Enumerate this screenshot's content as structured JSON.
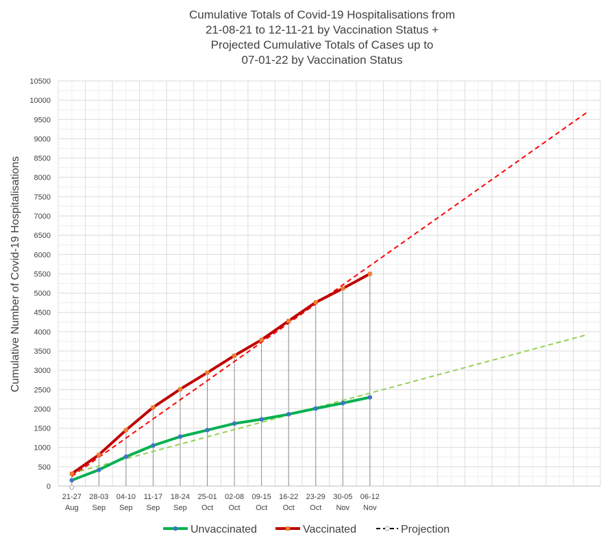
{
  "chart_data": {
    "type": "line",
    "title_lines": [
      "Cumulative Totals of Covid-19 Hospitalisations from",
      "21-08-21 to 12-11-21 by Vaccination Status +",
      "Projected Cumulative Totals of Cases up to",
      "07-01-22 by Vaccination Status"
    ],
    "ylabel": "Cumulative Number of Covid-19 Hospitalisations",
    "xlabel": "",
    "ylim": [
      0,
      10500
    ],
    "y_ticks": [
      0,
      500,
      1000,
      1500,
      2000,
      2500,
      3000,
      3500,
      4000,
      4500,
      5000,
      5500,
      6000,
      6500,
      7000,
      7500,
      8000,
      8500,
      9000,
      9500,
      10000,
      10500
    ],
    "grid": true,
    "legend_position": "bottom",
    "total_periods": 20,
    "categories": [
      {
        "range": "21-27",
        "month": "Aug"
      },
      {
        "range": "28-03",
        "month": "Sep"
      },
      {
        "range": "04-10",
        "month": "Sep"
      },
      {
        "range": "11-17",
        "month": "Sep"
      },
      {
        "range": "18-24",
        "month": "Sep"
      },
      {
        "range": "25-01",
        "month": "Oct"
      },
      {
        "range": "02-08",
        "month": "Oct"
      },
      {
        "range": "09-15",
        "month": "Oct"
      },
      {
        "range": "16-22",
        "month": "Oct"
      },
      {
        "range": "23-29",
        "month": "Oct"
      },
      {
        "range": "30-05",
        "month": "Nov"
      },
      {
        "range": "06-12",
        "month": "Nov"
      }
    ],
    "series": [
      {
        "name": "Unvaccinated",
        "color": "#00b050",
        "marker_color": "#4472c4",
        "values": [
          150,
          420,
          760,
          1050,
          1280,
          1450,
          1620,
          1730,
          1860,
          2010,
          2150,
          2300
        ]
      },
      {
        "name": "Vaccinated",
        "color": "#c00000",
        "marker_color": "#ed7d31",
        "values": [
          320,
          810,
          1450,
          2040,
          2510,
          2940,
          3380,
          3790,
          4280,
          4760,
          5120,
          5500
        ]
      }
    ],
    "projection": {
      "name": "Projection",
      "legend_color": "#000000",
      "lines": [
        {
          "of": "Vaccinated",
          "color": "#ff0000",
          "start": [
            0,
            250
          ],
          "end": [
            19,
            9680
          ]
        },
        {
          "of": "Unvaccinated",
          "color": "#92d050",
          "start": [
            0,
            330
          ],
          "end": [
            19,
            3920
          ]
        }
      ]
    }
  }
}
